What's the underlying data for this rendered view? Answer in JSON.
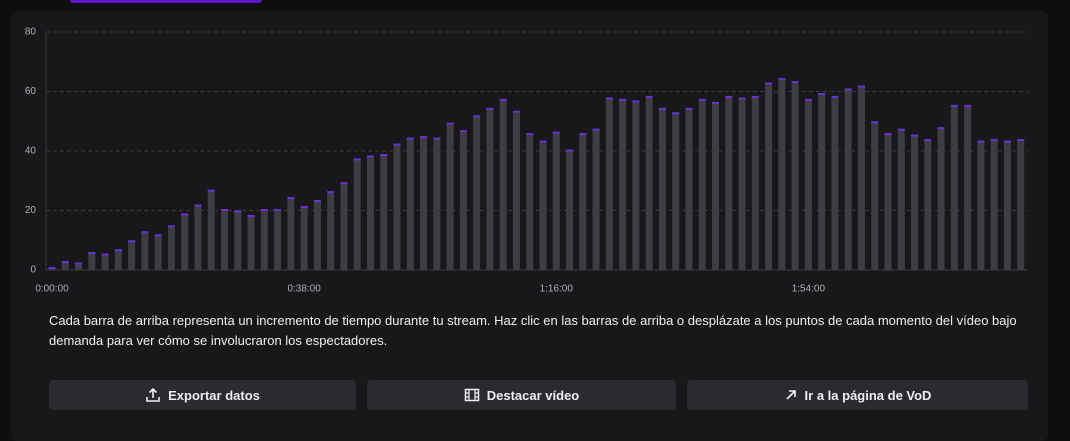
{
  "chart_data": {
    "type": "bar",
    "categories": [
      "0:00:00",
      null,
      null,
      null,
      null,
      null,
      null,
      null,
      null,
      null,
      null,
      null,
      null,
      null,
      null,
      null,
      null,
      null,
      null,
      "0:38:00",
      null,
      null,
      null,
      null,
      null,
      null,
      null,
      null,
      null,
      null,
      null,
      null,
      null,
      null,
      null,
      null,
      null,
      null,
      "1:16:00",
      null,
      null,
      null,
      null,
      null,
      null,
      null,
      null,
      null,
      null,
      null,
      null,
      null,
      null,
      null,
      null,
      null,
      null,
      "1:54:00",
      null,
      null,
      null,
      null,
      null,
      null,
      null,
      null,
      null,
      null,
      null,
      null,
      null,
      null,
      null,
      null
    ],
    "values": [
      1,
      3,
      2.5,
      6,
      5.5,
      7,
      10,
      13,
      12,
      15,
      19,
      22,
      27,
      20.5,
      20,
      18.5,
      20.5,
      20.5,
      24.5,
      21.5,
      23.5,
      26.5,
      29.5,
      37.5,
      38.5,
      39,
      42.5,
      44.5,
      45,
      44.5,
      49.5,
      47,
      52,
      54.5,
      57.5,
      53.5,
      46,
      43.5,
      46.5,
      40.5,
      46,
      47.5,
      58,
      57.5,
      57,
      58.5,
      54.5,
      53,
      54.5,
      57.5,
      56.5,
      58.5,
      58,
      58.5,
      63,
      64.5,
      63.5,
      57.5,
      59.5,
      58.5,
      61,
      62,
      50,
      46,
      47.5,
      45.5,
      44,
      48,
      55.5,
      55.5,
      43.5,
      44,
      43.5,
      44
    ],
    "color": "#3d3d42",
    "cap_color": "#6b2fd6",
    "ylim": [
      0,
      80
    ],
    "yticks": [
      0,
      20,
      40,
      60,
      80
    ],
    "grid": true
  },
  "description": "Cada barra de arriba representa un incremento de tiempo durante tu stream. Haz clic en las barras de arriba o desplázate a los puntos de cada momento del vídeo bajo demanda para ver cómo se involucraron los espectadores.",
  "buttons": [
    "Exportar datos",
    "Destacar vídeo",
    "Ir a la página de VoD"
  ]
}
